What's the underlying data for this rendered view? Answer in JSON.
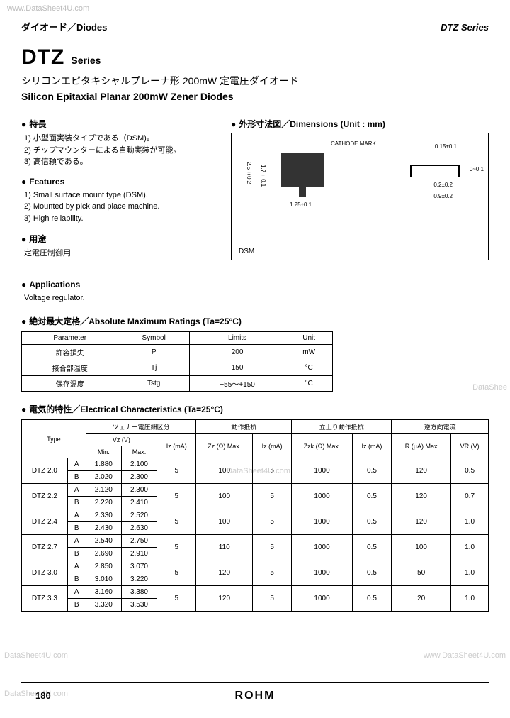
{
  "watermarks": {
    "top": "www.DataSheet4U.com",
    "right": "DataShee",
    "mid": "DataSheet4U.com",
    "bl": "DataSheet4U.com",
    "br": "www.DataSheet4U.com",
    "bl2": "DataSheet4U.com"
  },
  "header": {
    "left": "ダイオード／Diodes",
    "right": "DTZ Series"
  },
  "title": {
    "main": "DTZ",
    "sub": "Series",
    "jp": "シリコンエピタキシャルプレーナ形 200mW 定電圧ダイオード",
    "en": "Silicon Epitaxial Planar 200mW Zener Diodes"
  },
  "features_jp": {
    "head": "特長",
    "items": [
      "1) 小型面実装タイプである（DSM)。",
      "2) チップマウンターによる自動実装が可能。",
      "3) 高信頼である。"
    ]
  },
  "features_en": {
    "head": "Features",
    "items": [
      "1) Small surface mount type (DSM).",
      "2) Mounted by pick and place machine.",
      "3) High reliability."
    ]
  },
  "applications_jp": {
    "head": "用途",
    "text": "定電圧制御用"
  },
  "applications_en": {
    "head": "Applications",
    "text": "Voltage regulator."
  },
  "dimensions": {
    "head": "外形寸法図／Dimensions (Unit : mm)",
    "cathode": "CATHODE MARK",
    "dsm": "DSM",
    "d1": "2.5±0.2",
    "d2": "1.7±0.1",
    "d3": "1.25±0.1",
    "d4": "0.15±0.1",
    "d5": "0.2±0.2",
    "d6": "0.9±0.2",
    "d7": "0~0.1"
  },
  "abs_ratings": {
    "title": "絶対最大定格／Absolute Maximum Ratings (Ta=25°C)",
    "headers": [
      "Parameter",
      "Symbol",
      "Limits",
      "Unit"
    ],
    "rows": [
      [
        "許容損失",
        "P",
        "200",
        "mW"
      ],
      [
        "接合部温度",
        "Tj",
        "150",
        "°C"
      ],
      [
        "保存温度",
        "Tstg",
        "−55〜+150",
        "°C"
      ]
    ]
  },
  "elec": {
    "title": "電気的特性／Electrical Characteristics (Ta=25°C)",
    "group_headers": [
      "",
      "ツェナー電圧細区分",
      "動作抵抗",
      "立上り動作抵抗",
      "逆方向電流"
    ],
    "sub_headers": {
      "type": "Type",
      "vz": "Vz (V)",
      "iz1": "Iz (mA)",
      "zz": "Zz (Ω) Max.",
      "iz2": "Iz (mA)",
      "zzk": "Zzk (Ω) Max.",
      "iz3": "Iz (mA)",
      "ir": "IR (µA) Max.",
      "vr": "VR (V)",
      "min": "Min.",
      "max": "Max."
    },
    "rows": [
      {
        "type": "DTZ 2.0",
        "sub": "A",
        "min": "1.880",
        "max": "2.100",
        "iz1": "5",
        "zz": "100",
        "iz2": "5",
        "zzk": "1000",
        "iz3": "0.5",
        "ir": "120",
        "vr": "0.5"
      },
      {
        "type": "",
        "sub": "B",
        "min": "2.020",
        "max": "2.300",
        "iz1": "",
        "zz": "",
        "iz2": "",
        "zzk": "",
        "iz3": "",
        "ir": "",
        "vr": ""
      },
      {
        "type": "DTZ 2.2",
        "sub": "A",
        "min": "2.120",
        "max": "2.300",
        "iz1": "5",
        "zz": "100",
        "iz2": "5",
        "zzk": "1000",
        "iz3": "0.5",
        "ir": "120",
        "vr": "0.7"
      },
      {
        "type": "",
        "sub": "B",
        "min": "2.220",
        "max": "2.410",
        "iz1": "",
        "zz": "",
        "iz2": "",
        "zzk": "",
        "iz3": "",
        "ir": "",
        "vr": ""
      },
      {
        "type": "DTZ 2.4",
        "sub": "A",
        "min": "2.330",
        "max": "2.520",
        "iz1": "5",
        "zz": "100",
        "iz2": "5",
        "zzk": "1000",
        "iz3": "0.5",
        "ir": "120",
        "vr": "1.0"
      },
      {
        "type": "",
        "sub": "B",
        "min": "2.430",
        "max": "2.630",
        "iz1": "",
        "zz": "",
        "iz2": "",
        "zzk": "",
        "iz3": "",
        "ir": "",
        "vr": ""
      },
      {
        "type": "DTZ 2.7",
        "sub": "A",
        "min": "2.540",
        "max": "2.750",
        "iz1": "5",
        "zz": "110",
        "iz2": "5",
        "zzk": "1000",
        "iz3": "0.5",
        "ir": "100",
        "vr": "1.0"
      },
      {
        "type": "",
        "sub": "B",
        "min": "2.690",
        "max": "2.910",
        "iz1": "",
        "zz": "",
        "iz2": "",
        "zzk": "",
        "iz3": "",
        "ir": "",
        "vr": ""
      },
      {
        "type": "DTZ 3.0",
        "sub": "A",
        "min": "2.850",
        "max": "3.070",
        "iz1": "5",
        "zz": "120",
        "iz2": "5",
        "zzk": "1000",
        "iz3": "0.5",
        "ir": "50",
        "vr": "1.0"
      },
      {
        "type": "",
        "sub": "B",
        "min": "3.010",
        "max": "3.220",
        "iz1": "",
        "zz": "",
        "iz2": "",
        "zzk": "",
        "iz3": "",
        "ir": "",
        "vr": ""
      },
      {
        "type": "DTZ 3.3",
        "sub": "A",
        "min": "3.160",
        "max": "3.380",
        "iz1": "5",
        "zz": "120",
        "iz2": "5",
        "zzk": "1000",
        "iz3": "0.5",
        "ir": "20",
        "vr": "1.0"
      },
      {
        "type": "",
        "sub": "B",
        "min": "3.320",
        "max": "3.530",
        "iz1": "",
        "zz": "",
        "iz2": "",
        "zzk": "",
        "iz3": "",
        "ir": "",
        "vr": ""
      }
    ]
  },
  "footer": {
    "page": "180",
    "brand": "ROHM"
  },
  "colors": {
    "text": "#000000",
    "bg": "#ffffff",
    "watermark": "#cccccc",
    "pkg": "#333333"
  }
}
